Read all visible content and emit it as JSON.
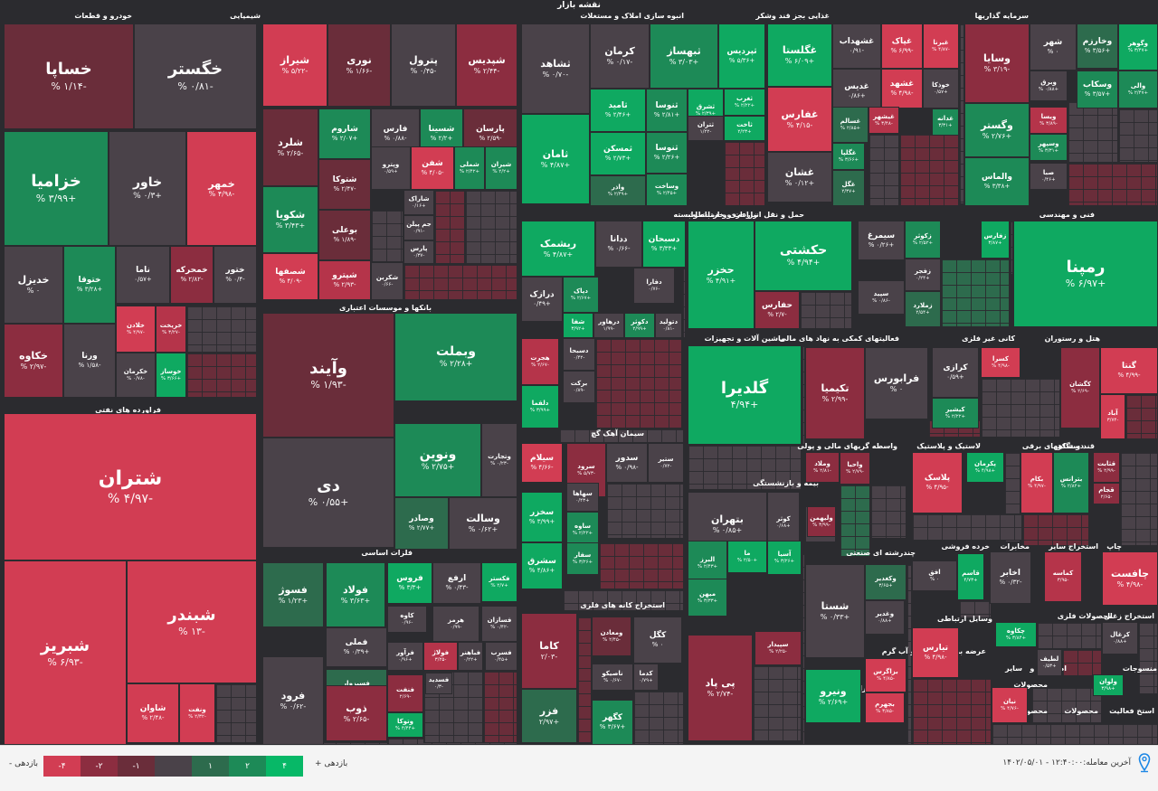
{
  "title": "نقشه بازار",
  "colors": {
    "r4": "#d23d53",
    "r3": "#b5344a",
    "r2": "#8c2d40",
    "r1": "#6a2d3a",
    "n0": "#4a4249",
    "g1": "#2d6b4d",
    "g2": "#1d8a57",
    "g3": "#0fa961",
    "g4": "#07b867",
    "bg": "#2b2b2f"
  },
  "sectors": [
    {
      "label": "خودرو و قطعات"
    },
    {
      "label": "شیمیایی"
    },
    {
      "label": "انبوه سازی املاک و مستغلات"
    },
    {
      "label": "غذایی بجز قند وشکر"
    },
    {
      "label": "سرمایه گذاریها"
    },
    {
      "label": "فراورده های نفتی"
    },
    {
      "label": "بانکها و موسسات اعتباری"
    },
    {
      "label": "دارویی"
    },
    {
      "label": "حمل و نقل انبارداری و ارتباطات"
    },
    {
      "label": "زراعت و خدمات وابسته"
    },
    {
      "label": "فنی و مهندسی"
    },
    {
      "label": "ماشین آلات و تجهیزات"
    },
    {
      "label": "فعالیتهای کمکی به نهاد های مالی"
    },
    {
      "label": "کانی غیر فلزی"
    },
    {
      "label": "هتل و رستوران"
    },
    {
      "label": "سیمان آهک گچ"
    },
    {
      "label": "واسطه گریهای مالی و پولی"
    },
    {
      "label": "لاستیک و پلاستیک"
    },
    {
      "label": "دستگاههای برقی"
    },
    {
      "label": "قند و شکر"
    },
    {
      "label": "فلزات اساسی"
    },
    {
      "label": "بیمه و بازنشستگی"
    },
    {
      "label": "چندرشته ای صنعتی"
    },
    {
      "label": "خرده فروشی"
    },
    {
      "label": "مخابرات"
    },
    {
      "label": "استخراج سایر"
    },
    {
      "label": "چاپ"
    },
    {
      "label": "استخراج کانه های فلزی"
    },
    {
      "label": "رایانه"
    },
    {
      "label": "عرضه برق،گاز،بخار و آب گرم"
    },
    {
      "label": "وسایل ارتباطی"
    },
    {
      "label": "محصولات فلزی"
    },
    {
      "label": "استخراج زغال"
    },
    {
      "label": "سایر"
    },
    {
      "label": "اطلاعات و"
    },
    {
      "label": "منسوجات"
    },
    {
      "label": "کاشی و سرامیک"
    },
    {
      "label": "محصولات"
    },
    {
      "label": "استخ فعالیت"
    },
    {
      "label": "محصولات"
    },
    {
      "label": "محصولات"
    }
  ],
  "tiles": [
    {
      "name": "خساپا",
      "pct": "-۱/۱۴ %",
      "c": "r1"
    },
    {
      "name": "خگستر",
      "pct": "-۰/۸۱ %",
      "c": "n0"
    },
    {
      "name": "خزامیا",
      "pct": "+۳/۹۹ %",
      "c": "g2"
    },
    {
      "name": "خاور",
      "pct": "+۰/۳ %",
      "c": "n0"
    },
    {
      "name": "خمهر",
      "pct": "-۴/۹۸ %",
      "c": "r4"
    },
    {
      "name": "خدیزل",
      "pct": "۰ %",
      "c": "n0"
    },
    {
      "name": "ختوقا",
      "pct": "+۳/۲۸ %",
      "c": "g2"
    },
    {
      "name": "ناما",
      "pct": "+۰/۵۷",
      "c": "n0"
    },
    {
      "name": "خمحرکه",
      "pct": "-۲/۸۲ %",
      "c": "r2"
    },
    {
      "name": "ختور",
      "pct": "-۰/۴ %",
      "c": "n0"
    },
    {
      "name": "خلادن",
      "pct": "-۴/۹۷ %",
      "c": "r4"
    },
    {
      "name": "خریخت",
      "pct": "-۳/۲۷ %",
      "c": "r3"
    },
    {
      "name": "خکاوه",
      "pct": "-۲/۹۷ %",
      "c": "r2"
    },
    {
      "name": "ورنا",
      "pct": "-۱/۵۸ %",
      "c": "n0"
    },
    {
      "name": "خکرمان",
      "pct": "-۰/۷۸ %",
      "c": "n0"
    },
    {
      "name": "خوساز",
      "pct": "+۳/۶۶ %",
      "c": "g3"
    },
    {
      "name": "شتران",
      "pct": "-۴/۹۷ %",
      "c": "r4"
    },
    {
      "name": "شبریز",
      "pct": "-۶/۹۳ %",
      "c": "r4"
    },
    {
      "name": "شبندر",
      "pct": "-۱۳ %",
      "c": "r4"
    },
    {
      "name": "شاوان",
      "pct": "-۲/۴۸ %",
      "c": "r4"
    },
    {
      "name": "ونفت",
      "pct": "-۲/۳۲ %",
      "c": "r4"
    },
    {
      "name": "شیراز",
      "pct": "-۵/۲۲ %",
      "c": "r4"
    },
    {
      "name": "نوری",
      "pct": "-۱/۶۶ %",
      "c": "r1"
    },
    {
      "name": "پترول",
      "pct": "-۰/۴۵ %",
      "c": "n0"
    },
    {
      "name": "شپدیس",
      "pct": "-۲/۴۴ %",
      "c": "r2"
    },
    {
      "name": "شلرد",
      "pct": "-۲/۶۵ %",
      "c": "r1"
    },
    {
      "name": "شاروم",
      "pct": "+۲/۰۷ %",
      "c": "g2"
    },
    {
      "name": "فارس",
      "pct": "-۰/۸۸ %",
      "c": "n0"
    },
    {
      "name": "شسینا",
      "pct": "+۲/۲ %",
      "c": "g2"
    },
    {
      "name": "پارسان",
      "pct": "-۲/۵۹ %",
      "c": "r1"
    },
    {
      "name": "شتوکا",
      "pct": "-۲/۴۷ %",
      "c": "r1"
    },
    {
      "name": "شکویا",
      "pct": "+۳/۴۳ %",
      "c": "g2"
    },
    {
      "name": "بوعلی",
      "pct": "-۱/۸۹ %",
      "c": "r1"
    },
    {
      "name": "شصفها",
      "pct": "-۴/۰۹ %",
      "c": "r4"
    },
    {
      "name": "شپترو",
      "pct": "-۲/۹۳ %",
      "c": "r3"
    },
    {
      "name": "وپترو",
      "pct": "+۰/۵۹",
      "c": "n0"
    },
    {
      "name": "شفن",
      "pct": "-۴/۰۵ %",
      "c": "r4"
    },
    {
      "name": "شملی",
      "pct": "+۲/۴۲ %",
      "c": "g2"
    },
    {
      "name": "شیران",
      "pct": "+۲/۲ %",
      "c": "g2"
    },
    {
      "name": "شاراک",
      "pct": "+۰/۱۶",
      "c": "n0"
    },
    {
      "name": "جم پیلن",
      "pct": "-۰/۹۱",
      "c": "n0"
    },
    {
      "name": "پارس",
      "pct": "-۰/۳۷",
      "c": "n0"
    },
    {
      "name": "شکربن",
      "pct": "-۰/۶۶",
      "c": "n0"
    },
    {
      "name": "ثشاهد",
      "pct": "-۰/۷۰ %",
      "c": "n0"
    },
    {
      "name": "کرمان",
      "pct": "-۰/۱۷ %",
      "c": "n0"
    },
    {
      "name": "ثبهساز",
      "pct": "+۳/۰۳ %",
      "c": "g2"
    },
    {
      "name": "ثپردیس",
      "pct": "+۵/۳۶ %",
      "c": "g3"
    },
    {
      "name": "ثامید",
      "pct": "+۲/۴۶ %",
      "c": "g3"
    },
    {
      "name": "ثنوسا",
      "pct": "+۲/۸۱ %",
      "c": "g2"
    },
    {
      "name": "ثشرق",
      "pct": "+۲/۳۹ %",
      "c": "g3"
    },
    {
      "name": "ثغرب",
      "pct": "+۲/۲۲ %",
      "c": "g3"
    },
    {
      "name": "ثامان",
      "pct": "+۴/۸۷ %",
      "c": "g3"
    },
    {
      "name": "ثتران",
      "pct": "-۱/۲۲",
      "c": "n0"
    },
    {
      "name": "ثاخت",
      "pct": "+۲/۲۳",
      "c": "g3"
    },
    {
      "name": "ثمسکن",
      "pct": "+۲/۷۳ %",
      "c": "g3"
    },
    {
      "name": "ثنوسا",
      "pct": "+۲/۲۶ %",
      "c": "g2"
    },
    {
      "name": "واذر",
      "pct": "+۲/۴۹ %",
      "c": "g1"
    },
    {
      "name": "وساخت",
      "pct": "+۲/۴۵ %",
      "c": "g2"
    },
    {
      "name": "غگلستا",
      "pct": "+۶/۰۹ %",
      "c": "g3"
    },
    {
      "name": "غشهداب",
      "pct": "-۰/۹۱",
      "c": "n0"
    },
    {
      "name": "غپاک",
      "pct": "-۶/۹۹ %",
      "c": "r4"
    },
    {
      "name": "غبرنا",
      "pct": "-۴/۸۷ %",
      "c": "r4"
    },
    {
      "name": "غدیس",
      "pct": "+۰/۸۶",
      "c": "n0"
    },
    {
      "name": "غشهد",
      "pct": "-۴/۹۸ %",
      "c": "r4"
    },
    {
      "name": "خوذکا",
      "pct": "+۰/۵۷",
      "c": "n0"
    },
    {
      "name": "غفارس",
      "pct": "-۴/۱۵ %",
      "c": "r4"
    },
    {
      "name": "غسالم",
      "pct": "+۲/۸۵ %",
      "c": "g1"
    },
    {
      "name": "غیشهر",
      "pct": "-۳/۴۸ %",
      "c": "r3"
    },
    {
      "name": "غدانه",
      "pct": "+۳/۳۱",
      "c": "g2"
    },
    {
      "name": "غگلپا",
      "pct": "+۳/۶۶ %",
      "c": "g2"
    },
    {
      "name": "غشان",
      "pct": "+۰/۱۲ %",
      "c": "n0"
    },
    {
      "name": "غگل",
      "pct": "+۲/۳۷",
      "c": "g1"
    },
    {
      "name": "وسایا",
      "pct": "-۳/۱۹ %",
      "c": "r2"
    },
    {
      "name": "شهر",
      "pct": "۰ %",
      "c": "n0"
    },
    {
      "name": "وخارزم",
      "pct": "+۳/۵۶ %",
      "c": "g1"
    },
    {
      "name": "وگوهر",
      "pct": "+۳/۴۷ %",
      "c": "g3"
    },
    {
      "name": "وبرق",
      "pct": "+۰/۸۸ %",
      "c": "n0"
    },
    {
      "name": "وسکاب",
      "pct": "+۳/۵۷ %",
      "c": "g2"
    },
    {
      "name": "والی",
      "pct": "+۲/۴۷ %",
      "c": "g2"
    },
    {
      "name": "وگستر",
      "pct": "+۲/۷۶ %",
      "c": "g2"
    },
    {
      "name": "ویسا",
      "pct": "-۳/۸۹ %",
      "c": "r3"
    },
    {
      "name": "وسپهر",
      "pct": "+۳/۳۱ %",
      "c": "g2"
    },
    {
      "name": "والماس",
      "pct": "+۳/۳۸ %",
      "c": "g2"
    },
    {
      "name": "صبا",
      "pct": "+۰/۴۶",
      "c": "n0"
    },
    {
      "name": "وآیند",
      "pct": "-۱/۹۳ %",
      "c": "r1"
    },
    {
      "name": "وبملت",
      "pct": "+۲/۲۸ %",
      "c": "g2"
    },
    {
      "name": "دی",
      "pct": "+۰/۵۵ %",
      "c": "n0"
    },
    {
      "name": "ونوین",
      "pct": "+۲/۷۵ %",
      "c": "g2"
    },
    {
      "name": "وتجارت",
      "pct": "-۰/۲۳ %",
      "c": "n0"
    },
    {
      "name": "وصادر",
      "pct": "+۲/۷۷ %",
      "c": "g1"
    },
    {
      "name": "وسالت",
      "pct": "+۰/۶۲ %",
      "c": "n0"
    },
    {
      "name": "ریشمک",
      "pct": "+۴/۸۷ %",
      "c": "g3"
    },
    {
      "name": "ددانا",
      "pct": "-۰/۶۶ %",
      "c": "n0"
    },
    {
      "name": "دسبحان",
      "pct": "+۳/۳۳ %",
      "c": "g3"
    },
    {
      "name": "درازک",
      "pct": "+۰/۴۹",
      "c": "n0"
    },
    {
      "name": "دپاک",
      "pct": "+۲/۶۷ %",
      "c": "g2"
    },
    {
      "name": "دفارا",
      "pct": "-۰/۷۶",
      "c": "n0"
    },
    {
      "name": "شفا",
      "pct": "+۳/۹۲",
      "c": "g3"
    },
    {
      "name": "درهاور",
      "pct": "-۱/۹۹",
      "c": "n0"
    },
    {
      "name": "دکوثر",
      "pct": "+۲/۹۹",
      "c": "g2"
    },
    {
      "name": "دتولید",
      "pct": "-۰/۸۱",
      "c": "n0"
    },
    {
      "name": "هجرت",
      "pct": "-۲/۶۷ %",
      "c": "r3"
    },
    {
      "name": "دسبحا",
      "pct": "-۰/۴۲",
      "c": "n0"
    },
    {
      "name": "برکت",
      "pct": "-۰/۸۹",
      "c": "n0"
    },
    {
      "name": "دلقما",
      "pct": "+۳/۹۹ %",
      "c": "g3"
    },
    {
      "name": "حخزر",
      "pct": "+۴/۹۱ %",
      "c": "g3"
    },
    {
      "name": "حکشتی",
      "pct": "+۴/۹۴ %",
      "c": "g3"
    },
    {
      "name": "حفارس",
      "pct": "-۲/۷ %",
      "c": "r2"
    },
    {
      "name": "سیمرغ",
      "pct": "+۰/۲۶ %",
      "c": "n0"
    },
    {
      "name": "زکوثر",
      "pct": "+۲/۵۲ %",
      "c": "g2"
    },
    {
      "name": "زفارس",
      "pct": "+۳/۸۷",
      "c": "g3"
    },
    {
      "name": "زفجر",
      "pct": "+۰/۲۴",
      "c": "n0"
    },
    {
      "name": "سپید",
      "pct": "-۰/۸۶ %",
      "c": "n0"
    },
    {
      "name": "زملارد",
      "pct": "+۲/۵۴",
      "c": "g1"
    },
    {
      "name": "رمپنا",
      "pct": "+۶/۹۷ %",
      "c": "g3"
    },
    {
      "name": "گلدیرا",
      "pct": "+۴/۹۴",
      "c": "g3"
    },
    {
      "name": "تکیمیا",
      "pct": "-۲/۹۹ %",
      "c": "r2"
    },
    {
      "name": "فرابورس",
      "pct": "۰ %",
      "c": "n0"
    },
    {
      "name": "کرازی",
      "pct": "+۰/۵۹",
      "c": "n0"
    },
    {
      "name": "کسرا",
      "pct": "-۴/۹۸ %",
      "c": "r4"
    },
    {
      "name": "کیشیر",
      "pct": "+۲/۲۲ %",
      "c": "g2"
    },
    {
      "name": "کگشان",
      "pct": "-۲/۶۹ %",
      "c": "r2"
    },
    {
      "name": "گنتا",
      "pct": "-۴/۹۹ %",
      "c": "r4"
    },
    {
      "name": "آباد",
      "pct": "-۳/۷۴",
      "c": "r4"
    },
    {
      "name": "سیلام",
      "pct": "-۴/۶۶ %",
      "c": "r4"
    },
    {
      "name": "سرود",
      "pct": "-۵/۷۳ %",
      "c": "r2"
    },
    {
      "name": "سدور",
      "pct": "-۰/۹۸ %",
      "c": "n0"
    },
    {
      "name": "ستیر",
      "pct": "-۰/۷۲",
      "c": "n0"
    },
    {
      "name": "سخزر",
      "pct": "+۳/۹۹ %",
      "c": "g3"
    },
    {
      "name": "سهاها",
      "pct": "+۰/۴۳",
      "c": "n0"
    },
    {
      "name": "ساوه",
      "pct": "+۲/۲۲ %",
      "c": "g2"
    },
    {
      "name": "سشرق",
      "pct": "+۴/۸۶ %",
      "c": "g3"
    },
    {
      "name": "سفار",
      "pct": "+۳/۲۶ %",
      "c": "g2"
    },
    {
      "name": "وملاد",
      "pct": "-۲/۸۱ %",
      "c": "r2"
    },
    {
      "name": "واحیا",
      "pct": "-۲/۷۹ %",
      "c": "r2"
    },
    {
      "name": "ولساپا",
      "pct": "-۰/۶۶ %",
      "c": "n0"
    },
    {
      "name": "وليهمن",
      "pct": "-۳/۹۹ %",
      "c": "r2"
    },
    {
      "name": "پلاسک",
      "pct": "-۴/۹۵ %",
      "c": "r4"
    },
    {
      "name": "پکرمان",
      "pct": "+۴/۹۸ %",
      "c": "g3"
    },
    {
      "name": "بکام",
      "pct": "-۴/۹۷ %",
      "c": "r4"
    },
    {
      "name": "بترانس",
      "pct": "+۲/۸۲ %",
      "c": "g2"
    },
    {
      "name": "قثابت",
      "pct": "-۲/۹۹ %",
      "c": "r2"
    },
    {
      "name": "قجام",
      "pct": "-۲/۶۵",
      "c": "r2"
    },
    {
      "name": "فولاد",
      "pct": "+۳/۶۳ %",
      "c": "g2"
    },
    {
      "name": "فملی",
      "pct": "+۰/۳۹ %",
      "c": "n0"
    },
    {
      "name": "فروس",
      "pct": "+۳/۳ %",
      "c": "g3"
    },
    {
      "name": "ارفع",
      "pct": "-۰/۴۳ %",
      "c": "n0"
    },
    {
      "name": "فکستر",
      "pct": "+۲/۷ %",
      "c": "g3"
    },
    {
      "name": "فسوژ",
      "pct": "+۱/۲۳ %",
      "c": "g1"
    },
    {
      "name": "کاوه",
      "pct": "-۰/۹۶",
      "c": "n0"
    },
    {
      "name": "هرمز",
      "pct": "-۰/۹۹",
      "c": "n0"
    },
    {
      "name": "فسازان",
      "pct": "-۰/۴۲ %",
      "c": "n0"
    },
    {
      "name": "فسبزوار",
      "pct": "+۲/۸۵ %",
      "c": "g1"
    },
    {
      "name": "فرآور",
      "pct": "+۰/۹۶",
      "c": "n0"
    },
    {
      "name": "فولاژ",
      "pct": "-۳/۲۵",
      "c": "r3"
    },
    {
      "name": "فباهنر",
      "pct": "+۰/۲۲",
      "c": "n0"
    },
    {
      "name": "فسرب",
      "pct": "+۰/۴۵",
      "c": "n0"
    },
    {
      "name": "فرود",
      "pct": "-۰/۶۲ %",
      "c": "n0"
    },
    {
      "name": "فنفت",
      "pct": "-۲/۶۹",
      "c": "r2"
    },
    {
      "name": "فسدید",
      "pct": "-۰/۳",
      "c": "n0"
    },
    {
      "name": "ذوب",
      "pct": "-۲/۶۵ %",
      "c": "r2"
    },
    {
      "name": "وتوکا",
      "pct": "+۴/۴۴ %",
      "c": "g3"
    },
    {
      "name": "بتهران",
      "pct": "+۰/۸۵ %",
      "c": "n0"
    },
    {
      "name": "کوثر",
      "pct": "+۰/۶۸",
      "c": "n0"
    },
    {
      "name": "البرز",
      "pct": "+۲/۴۳ %",
      "c": "g2"
    },
    {
      "name": "ما",
      "pct": "+۲/۵۰ %",
      "c": "g3"
    },
    {
      "name": "آسیا",
      "pct": "+۳/۲۶ %",
      "c": "g3"
    },
    {
      "name": "میهن",
      "pct": "+۳/۳۳ %",
      "c": "g2"
    },
    {
      "name": "شستا",
      "pct": "+۰/۳۳ %",
      "c": "n0"
    },
    {
      "name": "وکغدیر",
      "pct": "+۳/۶۵",
      "c": "g1"
    },
    {
      "name": "وغدیر",
      "pct": "+۰/۸۸",
      "c": "n0"
    },
    {
      "name": "افق",
      "pct": "۰ %",
      "c": "n0"
    },
    {
      "name": "قاسم",
      "pct": "+۴/۷۳",
      "c": "g3"
    },
    {
      "name": "اخابر",
      "pct": "-۰/۳۲ %",
      "c": "n0"
    },
    {
      "name": "کماسه",
      "pct": "-۳/۹۵",
      "c": "r3"
    },
    {
      "name": "چافست",
      "pct": "-۴/۹۸ %",
      "c": "r4"
    },
    {
      "name": "کاما",
      "pct": "-۲/۰۳",
      "c": "r2"
    },
    {
      "name": "ومعادن",
      "pct": "-۲/۴۵ %",
      "c": "r1"
    },
    {
      "name": "کگل",
      "pct": "۰ %",
      "c": "n0"
    },
    {
      "name": "ناصیکو",
      "pct": "-۰/۶۷ %",
      "c": "n0"
    },
    {
      "name": "کدما",
      "pct": "+۰/۷۹",
      "c": "n0"
    },
    {
      "name": "فزر",
      "pct": "+۲/۹۷",
      "c": "g1"
    },
    {
      "name": "کگهر",
      "pct": "+۳/۶۷ %",
      "c": "g2"
    },
    {
      "name": "سپیدار",
      "pct": "-۲/۲۵ %",
      "c": "r2"
    },
    {
      "name": "پی پاد",
      "pct": "-۲/۷۴ %",
      "c": "r2"
    },
    {
      "name": "بزاگرس",
      "pct": "-۴/۸۵ %",
      "c": "r4"
    },
    {
      "name": "ونیرو",
      "pct": "+۲/۶۹ %",
      "c": "g3"
    },
    {
      "name": "بجهرم",
      "pct": "-۳/۸۵ %",
      "c": "r4"
    },
    {
      "name": "تیارس",
      "pct": "-۴/۹۸ %",
      "c": "r4"
    },
    {
      "name": "چکاوه",
      "pct": "+۳/۸۴ %",
      "c": "g3"
    },
    {
      "name": "لطیف",
      "pct": "+۰/۵۳",
      "c": "n0"
    },
    {
      "name": "کزغال",
      "pct": "+۰/۸۸",
      "c": "n0"
    },
    {
      "name": "ولوان",
      "pct": "+۳/۹۸",
      "c": "g3"
    },
    {
      "name": "نیان",
      "pct": "-۴/۷۶ %",
      "c": "r4"
    }
  ],
  "legend": {
    "up_label": "بازدهی +",
    "down_label": "بازدهی -",
    "steps": [
      "-۴",
      "-۲",
      "-۱",
      "",
      "۱",
      "۲",
      "۴"
    ]
  },
  "footer": {
    "last_trade": "آخرین معامله:۱۲:۴۰:۰۰ - ۱۴۰۲/۰۵/۰۱"
  }
}
